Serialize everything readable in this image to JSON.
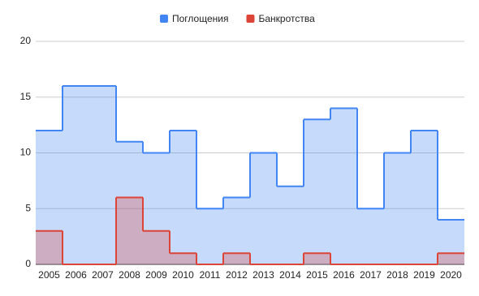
{
  "chart_data": {
    "type": "steppedarea",
    "categories": [
      "2005",
      "2006",
      "2007",
      "2008",
      "2009",
      "2010",
      "2011",
      "2012",
      "2013",
      "2014",
      "2015",
      "2016",
      "2017",
      "2018",
      "2019",
      "2020"
    ],
    "series": [
      {
        "name": "Поглощения",
        "color": "#4285f4",
        "values": [
          12,
          16,
          16,
          11,
          10,
          12,
          5,
          6,
          10,
          7,
          13,
          14,
          5,
          10,
          12,
          4
        ]
      },
      {
        "name": "Банкротства",
        "color": "#db4437",
        "values": [
          3,
          0,
          0,
          6,
          3,
          1,
          0,
          1,
          0,
          0,
          1,
          0,
          0,
          0,
          0,
          1
        ]
      }
    ],
    "ylim": [
      0,
      20
    ],
    "yticks": [
      0,
      5,
      10,
      15,
      20
    ],
    "grid": true,
    "legend": "top"
  }
}
